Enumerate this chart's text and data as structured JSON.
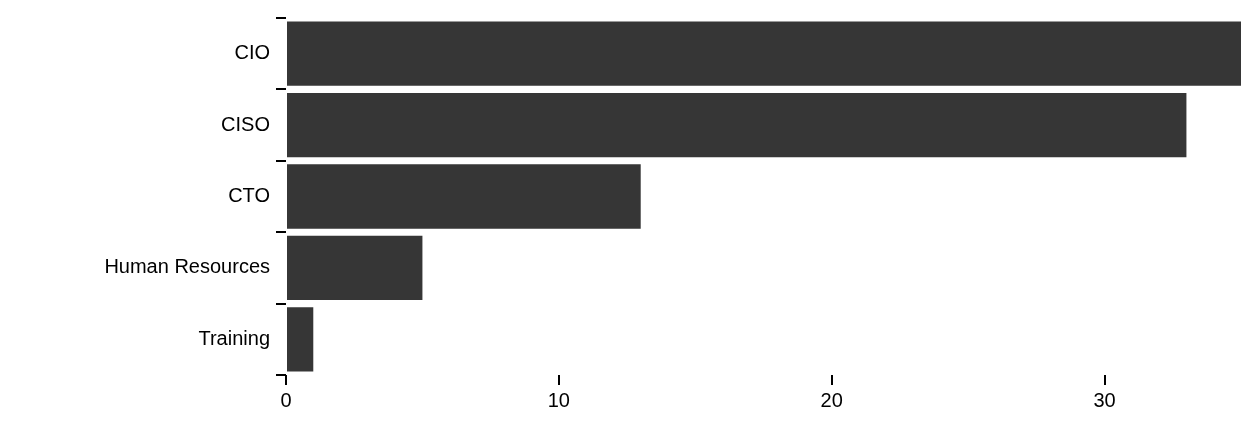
{
  "chart_data": {
    "type": "bar",
    "orientation": "horizontal",
    "categories": [
      "CIO",
      "CISO",
      "CTO",
      "Human Resources",
      "Training"
    ],
    "values": [
      35,
      33,
      13,
      5,
      1
    ],
    "color": "#363636",
    "xlim": [
      0,
      35
    ],
    "xticks": [
      0,
      10,
      20,
      30
    ],
    "grid": false,
    "legend": false
  }
}
